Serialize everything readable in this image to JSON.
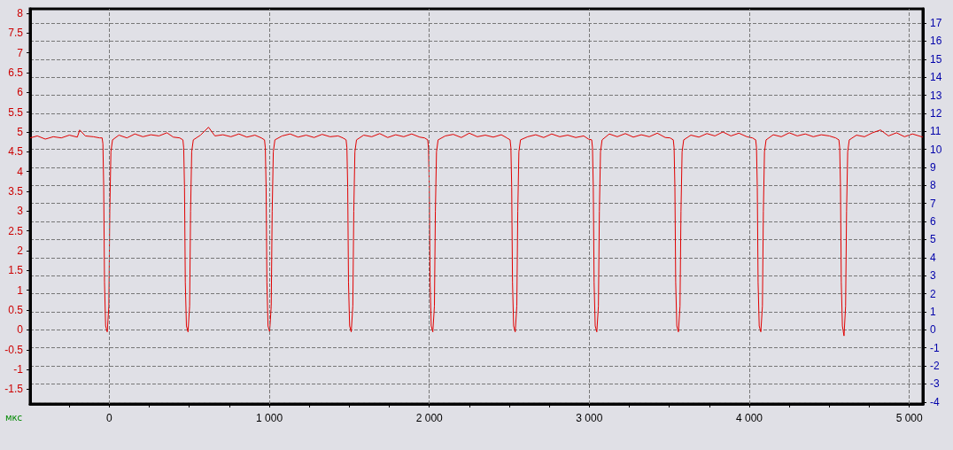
{
  "chart_data": {
    "type": "line",
    "xlabel": "мкс",
    "xlim": [
      -495,
      5085
    ],
    "ylim": [
      -1.87,
      8.11
    ],
    "y2lim": [
      -4.11,
      17.79
    ],
    "xticks": [
      {
        "value": -250,
        "label": null
      },
      {
        "value": 0,
        "label": "0"
      },
      {
        "value": 250,
        "label": null
      },
      {
        "value": 500,
        "label": null
      },
      {
        "value": 750,
        "label": null
      },
      {
        "value": 1000,
        "label": "1 000"
      },
      {
        "value": 1250,
        "label": null
      },
      {
        "value": 1500,
        "label": null
      },
      {
        "value": 1750,
        "label": null
      },
      {
        "value": 2000,
        "label": "2 000"
      },
      {
        "value": 2250,
        "label": null
      },
      {
        "value": 2500,
        "label": null
      },
      {
        "value": 2750,
        "label": null
      },
      {
        "value": 3000,
        "label": "3 000"
      },
      {
        "value": 3250,
        "label": null
      },
      {
        "value": 3500,
        "label": null
      },
      {
        "value": 3750,
        "label": null
      },
      {
        "value": 4000,
        "label": "4 000"
      },
      {
        "value": 4250,
        "label": null
      },
      {
        "value": 4500,
        "label": null
      },
      {
        "value": 4750,
        "label": null
      },
      {
        "value": 5000,
        "label": "5 000"
      }
    ],
    "yticks": [
      -1.5,
      -1,
      -0.5,
      0,
      0.5,
      1,
      1.5,
      2,
      2.5,
      3,
      3.5,
      4,
      4.5,
      5,
      5.5,
      6,
      6.5,
      7,
      7.5,
      8
    ],
    "y2ticks": [
      -4,
      -3,
      -2,
      -1,
      0,
      1,
      2,
      3,
      4,
      5,
      6,
      7,
      8,
      9,
      10,
      11,
      12,
      13,
      14,
      15,
      16,
      17
    ],
    "grid": true,
    "marker": "none",
    "line_style": "solid",
    "series": [
      {
        "color": "#e00000",
        "x": [
          -495,
          -450,
          -400,
          -350,
          -300,
          -250,
          -200,
          -185,
          -150,
          -100,
          -60,
          -45,
          -40,
          -35,
          -30,
          -23,
          -13,
          -3,
          3,
          10,
          20,
          60,
          110,
          160,
          210,
          260,
          310,
          360,
          400,
          440,
          460,
          465,
          470,
          475,
          482,
          492,
          502,
          508,
          515,
          525,
          570,
          620,
          660,
          710,
          760,
          810,
          860,
          910,
          950,
          970,
          975,
          980,
          985,
          992,
          1002,
          1012,
          1018,
          1025,
          1035,
          1080,
          1130,
          1180,
          1230,
          1280,
          1330,
          1380,
          1430,
          1460,
          1480,
          1485,
          1490,
          1495,
          1502,
          1512,
          1522,
          1528,
          1535,
          1545,
          1590,
          1640,
          1690,
          1740,
          1790,
          1840,
          1890,
          1940,
          1970,
          1990,
          1995,
          2000,
          2005,
          2012,
          2022,
          2032,
          2038,
          2045,
          2055,
          2100,
          2150,
          2200,
          2250,
          2300,
          2350,
          2400,
          2450,
          2485,
          2505,
          2510,
          2515,
          2520,
          2527,
          2537,
          2547,
          2553,
          2560,
          2570,
          2615,
          2665,
          2715,
          2765,
          2815,
          2865,
          2915,
          2965,
          2995,
          3015,
          3020,
          3025,
          3030,
          3037,
          3047,
          3057,
          3063,
          3070,
          3080,
          3125,
          3175,
          3225,
          3275,
          3325,
          3375,
          3425,
          3475,
          3505,
          3525,
          3530,
          3535,
          3540,
          3547,
          3557,
          3567,
          3573,
          3580,
          3590,
          3635,
          3685,
          3735,
          3785,
          3835,
          3885,
          3935,
          3985,
          4020,
          4040,
          4045,
          4050,
          4055,
          4062,
          4072,
          4082,
          4088,
          4095,
          4105,
          4150,
          4200,
          4250,
          4300,
          4350,
          4400,
          4450,
          4500,
          4540,
          4560,
          4565,
          4570,
          4575,
          4582,
          4592,
          4602,
          4608,
          4615,
          4625,
          4670,
          4720,
          4770,
          4820,
          4870,
          4920,
          4970,
          5020,
          5085
        ],
        "values": [
          4.85,
          4.9,
          4.82,
          4.88,
          4.85,
          4.92,
          4.87,
          5.05,
          4.9,
          4.88,
          4.85,
          4.85,
          4.7,
          3.6,
          1.2,
          0.1,
          -0.05,
          0.6,
          3,
          4.5,
          4.8,
          4.92,
          4.85,
          4.95,
          4.88,
          4.93,
          4.9,
          4.98,
          4.87,
          4.85,
          4.8,
          4.6,
          3.6,
          1.2,
          0.1,
          -0.05,
          0.6,
          3,
          4.5,
          4.8,
          4.92,
          5.12,
          4.9,
          4.93,
          4.88,
          4.95,
          4.87,
          4.92,
          4.85,
          4.8,
          4.6,
          3.6,
          1.2,
          0.1,
          -0.05,
          0.6,
          3,
          4.5,
          4.8,
          4.9,
          4.95,
          4.87,
          4.92,
          4.86,
          4.94,
          4.88,
          4.9,
          4.85,
          4.8,
          4.6,
          3.6,
          1.2,
          0.1,
          -0.05,
          0.6,
          3,
          4.5,
          4.8,
          4.92,
          4.88,
          4.96,
          4.86,
          4.93,
          4.88,
          4.95,
          4.87,
          4.85,
          4.8,
          4.6,
          3.6,
          1.2,
          0.1,
          -0.05,
          0.6,
          3,
          4.5,
          4.8,
          4.9,
          4.94,
          4.86,
          4.97,
          4.88,
          4.92,
          4.87,
          4.93,
          4.85,
          4.8,
          4.6,
          3.6,
          1.2,
          0.1,
          -0.05,
          0.6,
          3,
          4.5,
          4.8,
          4.88,
          4.93,
          4.86,
          4.95,
          4.88,
          4.92,
          4.86,
          4.9,
          4.82,
          4.8,
          4.6,
          3.6,
          1.2,
          0.1,
          -0.05,
          0.6,
          3,
          4.5,
          4.8,
          4.95,
          4.88,
          4.96,
          4.87,
          4.93,
          4.88,
          4.97,
          4.86,
          4.85,
          4.8,
          4.6,
          3.6,
          1.2,
          0.1,
          -0.05,
          0.6,
          3,
          4.5,
          4.8,
          4.92,
          4.87,
          4.96,
          4.9,
          5,
          4.9,
          4.97,
          4.88,
          4.85,
          4.8,
          4.6,
          3.6,
          1.2,
          0.1,
          -0.05,
          0.6,
          3,
          4.5,
          4.8,
          4.93,
          4.88,
          4.98,
          4.9,
          4.95,
          4.88,
          4.93,
          4.9,
          4.85,
          4.8,
          4.6,
          3.6,
          1.2,
          0.1,
          -0.15,
          0.6,
          3,
          4.5,
          4.8,
          4.92,
          4.88,
          4.98,
          5.05,
          4.9,
          4.98,
          4.88,
          4.95,
          4.87
        ]
      }
    ]
  }
}
